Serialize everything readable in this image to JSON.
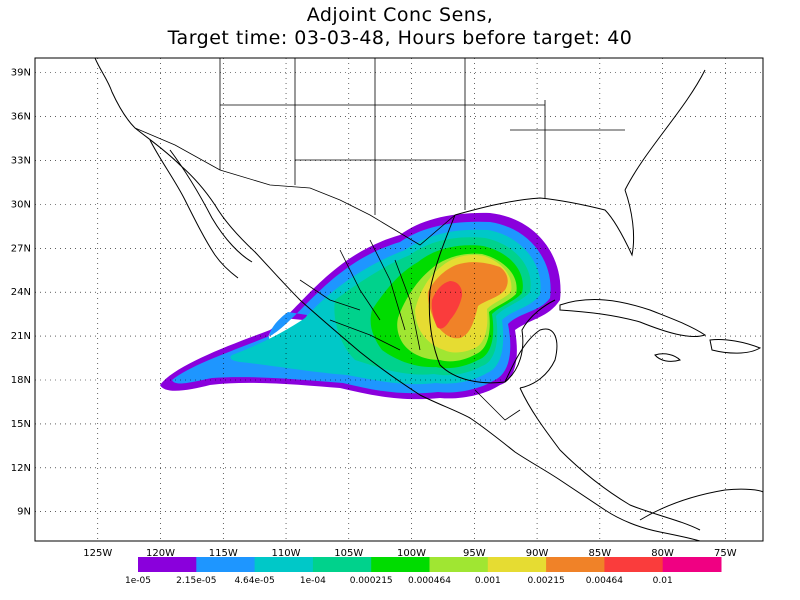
{
  "title": {
    "line1": "Adjoint Conc Sens,",
    "line2": "Target time: 03-03-48, Hours before target: 40"
  },
  "map": {
    "lat_labels": [
      "39N",
      "36N",
      "33N",
      "30N",
      "27N",
      "24N",
      "21N",
      "18N",
      "15N",
      "12N",
      "9N"
    ],
    "lat_values": [
      39,
      36,
      33,
      30,
      27,
      24,
      21,
      18,
      15,
      12,
      9
    ],
    "lon_labels": [
      "125W",
      "120W",
      "115W",
      "110W",
      "105W",
      "100W",
      "95W",
      "90W",
      "85W",
      "80W",
      "75W"
    ],
    "lon_values": [
      -125,
      -120,
      -115,
      -110,
      -105,
      -100,
      -95,
      -90,
      -85,
      -80,
      -75
    ],
    "lon_range": [
      -130,
      -72
    ],
    "lat_range": [
      7,
      40
    ],
    "grid": "dotted"
  },
  "colorbar": {
    "colors": [
      "#8a00dc",
      "#1e96ff",
      "#00c8c8",
      "#00d28c",
      "#00dc00",
      "#a0e632",
      "#e6dc32",
      "#f08228",
      "#fa3c3c",
      "#f00082"
    ],
    "labels": [
      "1e-05",
      "2.15e-05",
      "4.64e-05",
      "1e-04",
      "0.000215",
      "0.000464",
      "0.001",
      "0.00215",
      "0.00464",
      "0.01"
    ]
  }
}
